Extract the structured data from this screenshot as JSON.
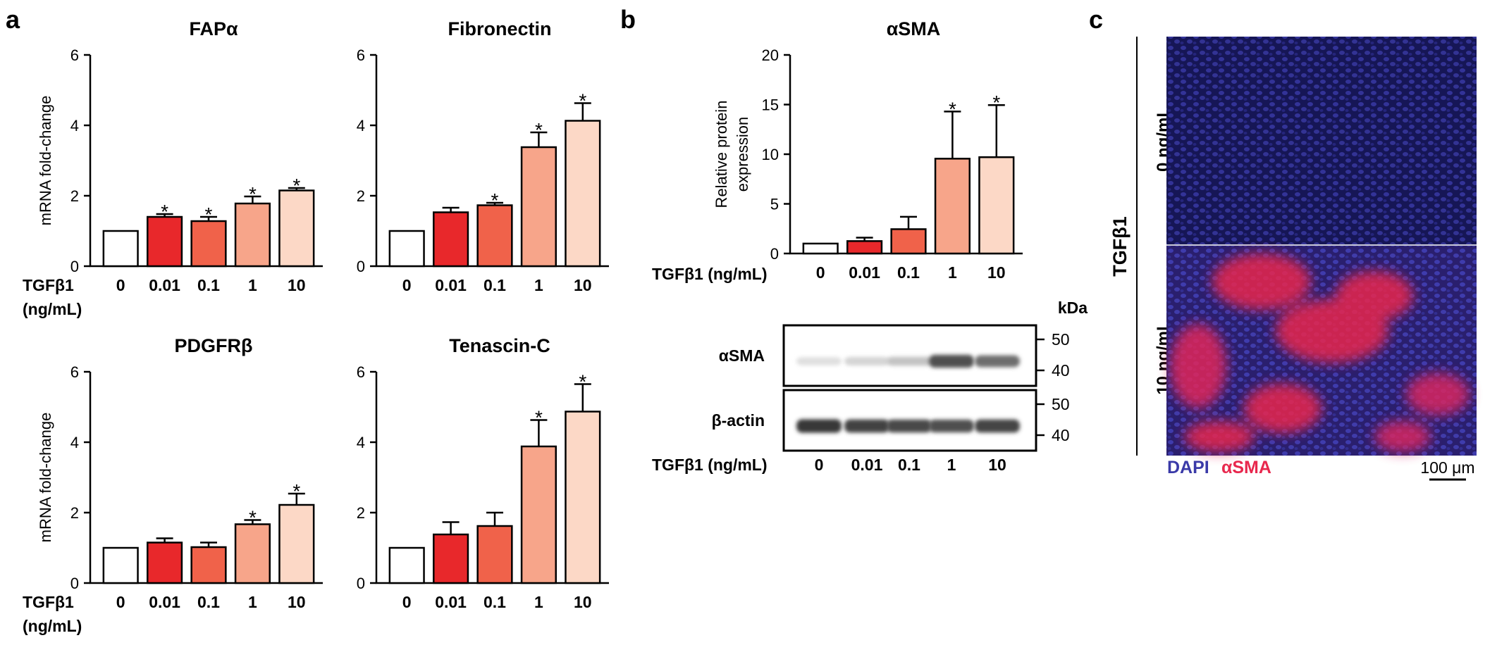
{
  "figure": {
    "panel_labels": [
      "a",
      "b",
      "c"
    ],
    "treatment_label": "TGFβ1",
    "treatment_unit_label": "(ng/mL)",
    "treatment_inline_label": "TGFβ1 (ng/mL)",
    "colors": {
      "bars": [
        "#ffffff",
        "#e8282b",
        "#f0624a",
        "#f7a58a",
        "#fcd8c6"
      ],
      "dapi": "#3a3aa8",
      "asma": "#e8284e"
    }
  },
  "chart_data": [
    {
      "id": "fapa",
      "type": "bar",
      "title": "FAPα",
      "ylabel": "mRNA fold-change",
      "ylim": [
        0,
        6
      ],
      "yticks": [
        0,
        2,
        4,
        6
      ],
      "categories": [
        "0",
        "0.01",
        "0.1",
        "1",
        "10"
      ],
      "values": [
        1.0,
        1.4,
        1.28,
        1.78,
        2.15
      ],
      "errors": [
        0,
        0.08,
        0.12,
        0.2,
        0.07
      ],
      "significance": [
        "",
        "*",
        "*",
        "*",
        "*"
      ]
    },
    {
      "id": "fibronectin",
      "type": "bar",
      "title": "Fibronectin",
      "ylabel": "",
      "ylim": [
        0,
        6
      ],
      "yticks": [
        0,
        2,
        4,
        6
      ],
      "categories": [
        "0",
        "0.01",
        "0.1",
        "1",
        "10"
      ],
      "values": [
        1.0,
        1.53,
        1.73,
        3.38,
        4.13
      ],
      "errors": [
        0,
        0.13,
        0.07,
        0.42,
        0.5
      ],
      "significance": [
        "",
        "",
        "*",
        "*",
        "*"
      ]
    },
    {
      "id": "pdgfrb",
      "type": "bar",
      "title": "PDGFRβ",
      "ylabel": "mRNA fold-change",
      "ylim": [
        0,
        6
      ],
      "yticks": [
        0,
        2,
        4,
        6
      ],
      "categories": [
        "0",
        "0.01",
        "0.1",
        "1",
        "10"
      ],
      "values": [
        1.0,
        1.15,
        1.02,
        1.67,
        2.22
      ],
      "errors": [
        0,
        0.12,
        0.13,
        0.12,
        0.32
      ],
      "significance": [
        "",
        "",
        "",
        "*",
        "*"
      ]
    },
    {
      "id": "tenascin",
      "type": "bar",
      "title": "Tenascin-C",
      "ylabel": "",
      "ylim": [
        0,
        6
      ],
      "yticks": [
        0,
        2,
        4,
        6
      ],
      "categories": [
        "0",
        "0.01",
        "0.1",
        "1",
        "10"
      ],
      "values": [
        1.0,
        1.38,
        1.62,
        3.88,
        4.87
      ],
      "errors": [
        0,
        0.35,
        0.38,
        0.75,
        0.78
      ],
      "significance": [
        "",
        "",
        "",
        "*",
        "*"
      ]
    },
    {
      "id": "asma",
      "type": "bar",
      "title": "αSMA",
      "ylabel": "Relative protein expression",
      "ylabel_lines": [
        "Relative protein",
        "expression"
      ],
      "ylim": [
        0,
        20
      ],
      "yticks": [
        0,
        5,
        10,
        15,
        20
      ],
      "categories": [
        "0",
        "0.01",
        "0.1",
        "1",
        "10"
      ],
      "values": [
        1.0,
        1.25,
        2.45,
        9.55,
        9.7
      ],
      "errors": [
        0,
        0.35,
        1.25,
        4.75,
        5.25
      ],
      "significance": [
        "",
        "",
        "",
        "*",
        "*"
      ]
    }
  ],
  "western_blot": {
    "unit_label": "kDa",
    "bands": [
      {
        "label": "αSMA",
        "markers": [
          "50",
          "40"
        ],
        "intensities": [
          0.15,
          0.2,
          0.28,
          0.82,
          0.68
        ]
      },
      {
        "label": "β-actin",
        "markers": [
          "50",
          "40"
        ],
        "intensities": [
          0.92,
          0.88,
          0.85,
          0.82,
          0.87
        ]
      }
    ],
    "lanes": [
      "0",
      "0.01",
      "0.1",
      "1",
      "10"
    ]
  },
  "microscopy": {
    "group_label": "TGFβ1",
    "rows": [
      "0 ng/mL",
      "10 ng/mL"
    ],
    "legend": [
      "DAPI",
      "αSMA"
    ],
    "scale_bar": "100 μm"
  }
}
